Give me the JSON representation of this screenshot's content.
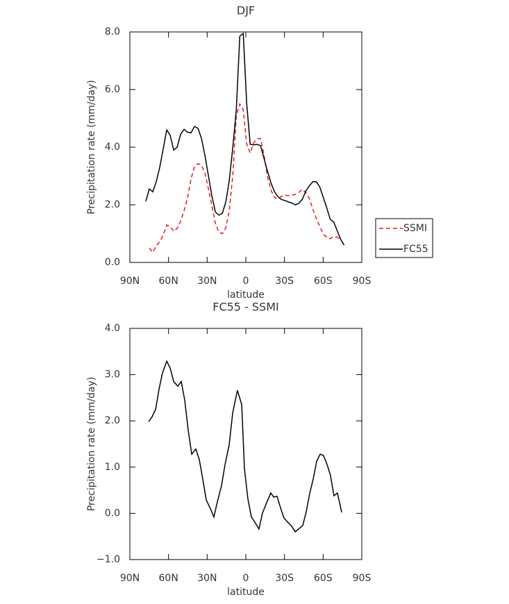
{
  "chart_data": [
    {
      "type": "line",
      "title": "DJF",
      "x_label": "latitude",
      "y_label": "Precipitation rate (mm/day)",
      "x": [
        77.6,
        74.9,
        72.2,
        69.5,
        66.8,
        64.1,
        61.4,
        58.7,
        56.0,
        53.3,
        50.6,
        47.9,
        45.2,
        42.5,
        39.8,
        37.1,
        34.4,
        31.7,
        29.0,
        26.3,
        23.6,
        20.9,
        18.2,
        15.5,
        12.8,
        10.1,
        7.4,
        4.7,
        2.0,
        -0.7,
        -3.4,
        -6.1,
        -8.8,
        -11.5,
        -14.2,
        -16.9,
        -19.6,
        -22.3,
        -25.0,
        -27.7,
        -30.4,
        -33.1,
        -35.8,
        -38.5,
        -41.2,
        -43.9,
        -46.6,
        -49.3,
        -52.0,
        -54.7,
        -57.4,
        -60.1,
        -62.8,
        -65.5,
        -68.2,
        -70.9,
        -73.6,
        -76.3
      ],
      "series": [
        {
          "name": "SSMI",
          "color": "#e41a1c",
          "style": "dashed",
          "values": [
            null,
            0.5,
            0.35,
            0.58,
            0.72,
            0.95,
            1.3,
            1.25,
            1.08,
            1.18,
            1.43,
            1.8,
            2.25,
            2.9,
            3.33,
            3.43,
            3.38,
            3.1,
            2.55,
            1.95,
            1.35,
            1.05,
            1.0,
            1.2,
            1.8,
            3.05,
            5.1,
            5.5,
            5.3,
            4.1,
            3.8,
            4.15,
            4.3,
            4.3,
            3.7,
            2.95,
            2.5,
            2.25,
            2.2,
            2.3,
            2.33,
            2.32,
            2.34,
            2.36,
            2.43,
            2.54,
            2.42,
            2.22,
            1.85,
            1.52,
            1.25,
            0.98,
            0.88,
            0.82,
            0.9,
            0.88,
            0.76,
            null
          ]
        },
        {
          "name": "FC55",
          "color": "#000000",
          "style": "solid",
          "values": [
            2.12,
            2.55,
            2.45,
            2.8,
            3.3,
            3.95,
            4.6,
            4.41,
            3.9,
            4.0,
            4.45,
            4.62,
            4.52,
            4.5,
            4.72,
            4.65,
            4.3,
            3.7,
            3.0,
            2.3,
            1.75,
            1.64,
            1.7,
            2.1,
            2.85,
            4.0,
            5.3,
            7.85,
            7.95,
            5.5,
            4.1,
            4.08,
            4.1,
            4.05,
            3.6,
            3.15,
            2.75,
            2.45,
            2.28,
            2.18,
            2.15,
            2.1,
            2.06,
            2.0,
            2.05,
            2.2,
            2.48,
            2.66,
            2.8,
            2.8,
            2.62,
            2.26,
            1.9,
            1.5,
            1.41,
            1.1,
            0.8,
            0.6
          ]
        }
      ],
      "xlim": [
        90,
        -90
      ],
      "xticks": [
        {
          "value": 90,
          "label": "90N"
        },
        {
          "value": 60,
          "label": "60N"
        },
        {
          "value": 30,
          "label": "30N"
        },
        0,
        {
          "value": -30,
          "label": "30S"
        },
        {
          "value": -60,
          "label": "60S"
        },
        {
          "value": -90,
          "label": "90S"
        }
      ],
      "ylim": [
        0,
        8
      ],
      "yticks": [
        {
          "value": 0,
          "label": "0.0"
        },
        {
          "value": 2,
          "label": "2.0"
        },
        {
          "value": 4,
          "label": "4.0"
        },
        {
          "value": 6,
          "label": "6.0"
        },
        {
          "value": 8,
          "label": "8.0"
        }
      ],
      "legend": "right",
      "grid": false
    },
    {
      "type": "line",
      "title": "FC55 - SSMI",
      "x_label": "latitude",
      "y_label": "Precipitation rate (mm/day)",
      "x": [
        75.4,
        72.7,
        70.0,
        67.3,
        64.7,
        61.4,
        58.7,
        56.0,
        52.8,
        50.1,
        47.4,
        44.7,
        42.0,
        38.8,
        36.1,
        33.4,
        30.7,
        27.5,
        24.8,
        22.1,
        18.9,
        16.2,
        12.9,
        10.2,
        6.5,
        3.2,
        1.1,
        -1.6,
        -4.3,
        -7.0,
        -10.2,
        -12.9,
        -15.6,
        -19.4,
        -21.6,
        -24.2,
        -27.5,
        -29.6,
        -32.9,
        -35.6,
        -38.3,
        -41.0,
        -44.2,
        -46.8,
        -49.6,
        -52.3,
        -55.0,
        -57.7,
        -60.3,
        -63.0,
        -65.7,
        -68.4,
        -71.1,
        -74.4
      ],
      "series": [
        {
          "name": "FC55 - SSMI",
          "color": "#000000",
          "style": "solid",
          "values": [
            1.98,
            2.09,
            2.25,
            2.69,
            3.03,
            3.29,
            3.14,
            2.85,
            2.75,
            2.85,
            2.45,
            1.79,
            1.28,
            1.39,
            1.16,
            0.74,
            0.29,
            0.1,
            -0.08,
            0.25,
            0.59,
            1.04,
            1.49,
            2.17,
            2.66,
            2.35,
            0.97,
            0.31,
            -0.08,
            -0.19,
            -0.34,
            0.0,
            0.19,
            0.44,
            0.35,
            0.37,
            0.07,
            -0.1,
            -0.2,
            -0.28,
            -0.4,
            -0.34,
            -0.26,
            0.02,
            0.43,
            0.74,
            1.13,
            1.28,
            1.25,
            1.06,
            0.82,
            0.38,
            0.44,
            0.02
          ]
        }
      ],
      "xlim": [
        90,
        -90
      ],
      "xticks": [
        {
          "value": 90,
          "label": "90N"
        },
        {
          "value": 60,
          "label": "60N"
        },
        {
          "value": 30,
          "label": "30N"
        },
        0,
        {
          "value": -30,
          "label": "30S"
        },
        {
          "value": -60,
          "label": "60S"
        },
        {
          "value": -90,
          "label": "90S"
        }
      ],
      "yticks": [
        {
          "value": -1,
          "label": "−1.0"
        },
        {
          "value": 0,
          "label": "0.0"
        },
        {
          "value": 1,
          "label": "1.0"
        },
        {
          "value": 2,
          "label": "2.0"
        },
        {
          "value": 3,
          "label": "3.0"
        },
        {
          "value": 4,
          "label": "4.0"
        }
      ],
      "ylim": [
        -1,
        4
      ],
      "grid": false
    }
  ]
}
